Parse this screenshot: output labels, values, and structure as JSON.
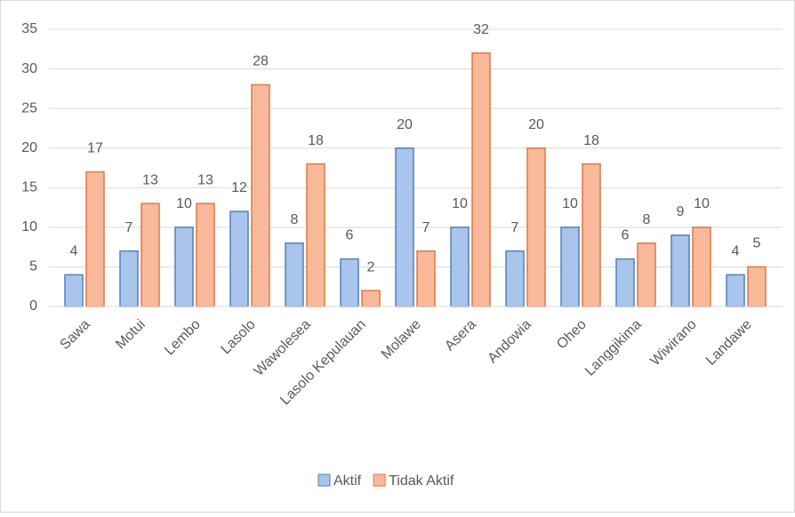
{
  "chart_data": {
    "type": "bar",
    "categories": [
      "Sawa",
      "Motui",
      "Lembo",
      "Lasolo",
      "Wawolesea",
      "Lasolo Kepulauan",
      "Molawe",
      "Asera",
      "Andowia",
      "Oheo",
      "Langgikima",
      "Wiwirano",
      "Landawe"
    ],
    "series": [
      {
        "name": "Aktif",
        "color": "#a9c5ec",
        "edge_color": "#4f81bd",
        "values": [
          4,
          7,
          10,
          12,
          8,
          6,
          20,
          10,
          7,
          10,
          6,
          9,
          4
        ]
      },
      {
        "name": "Tidak Aktif",
        "color": "#f8b99b",
        "edge_color": "#e3773e",
        "values": [
          17,
          13,
          13,
          28,
          18,
          2,
          7,
          32,
          20,
          18,
          8,
          10,
          5
        ]
      }
    ],
    "ylim": [
      0,
      35
    ],
    "yticks": [
      0,
      5,
      10,
      15,
      20,
      25,
      30,
      35
    ],
    "grid": true,
    "legend": "bottom"
  }
}
